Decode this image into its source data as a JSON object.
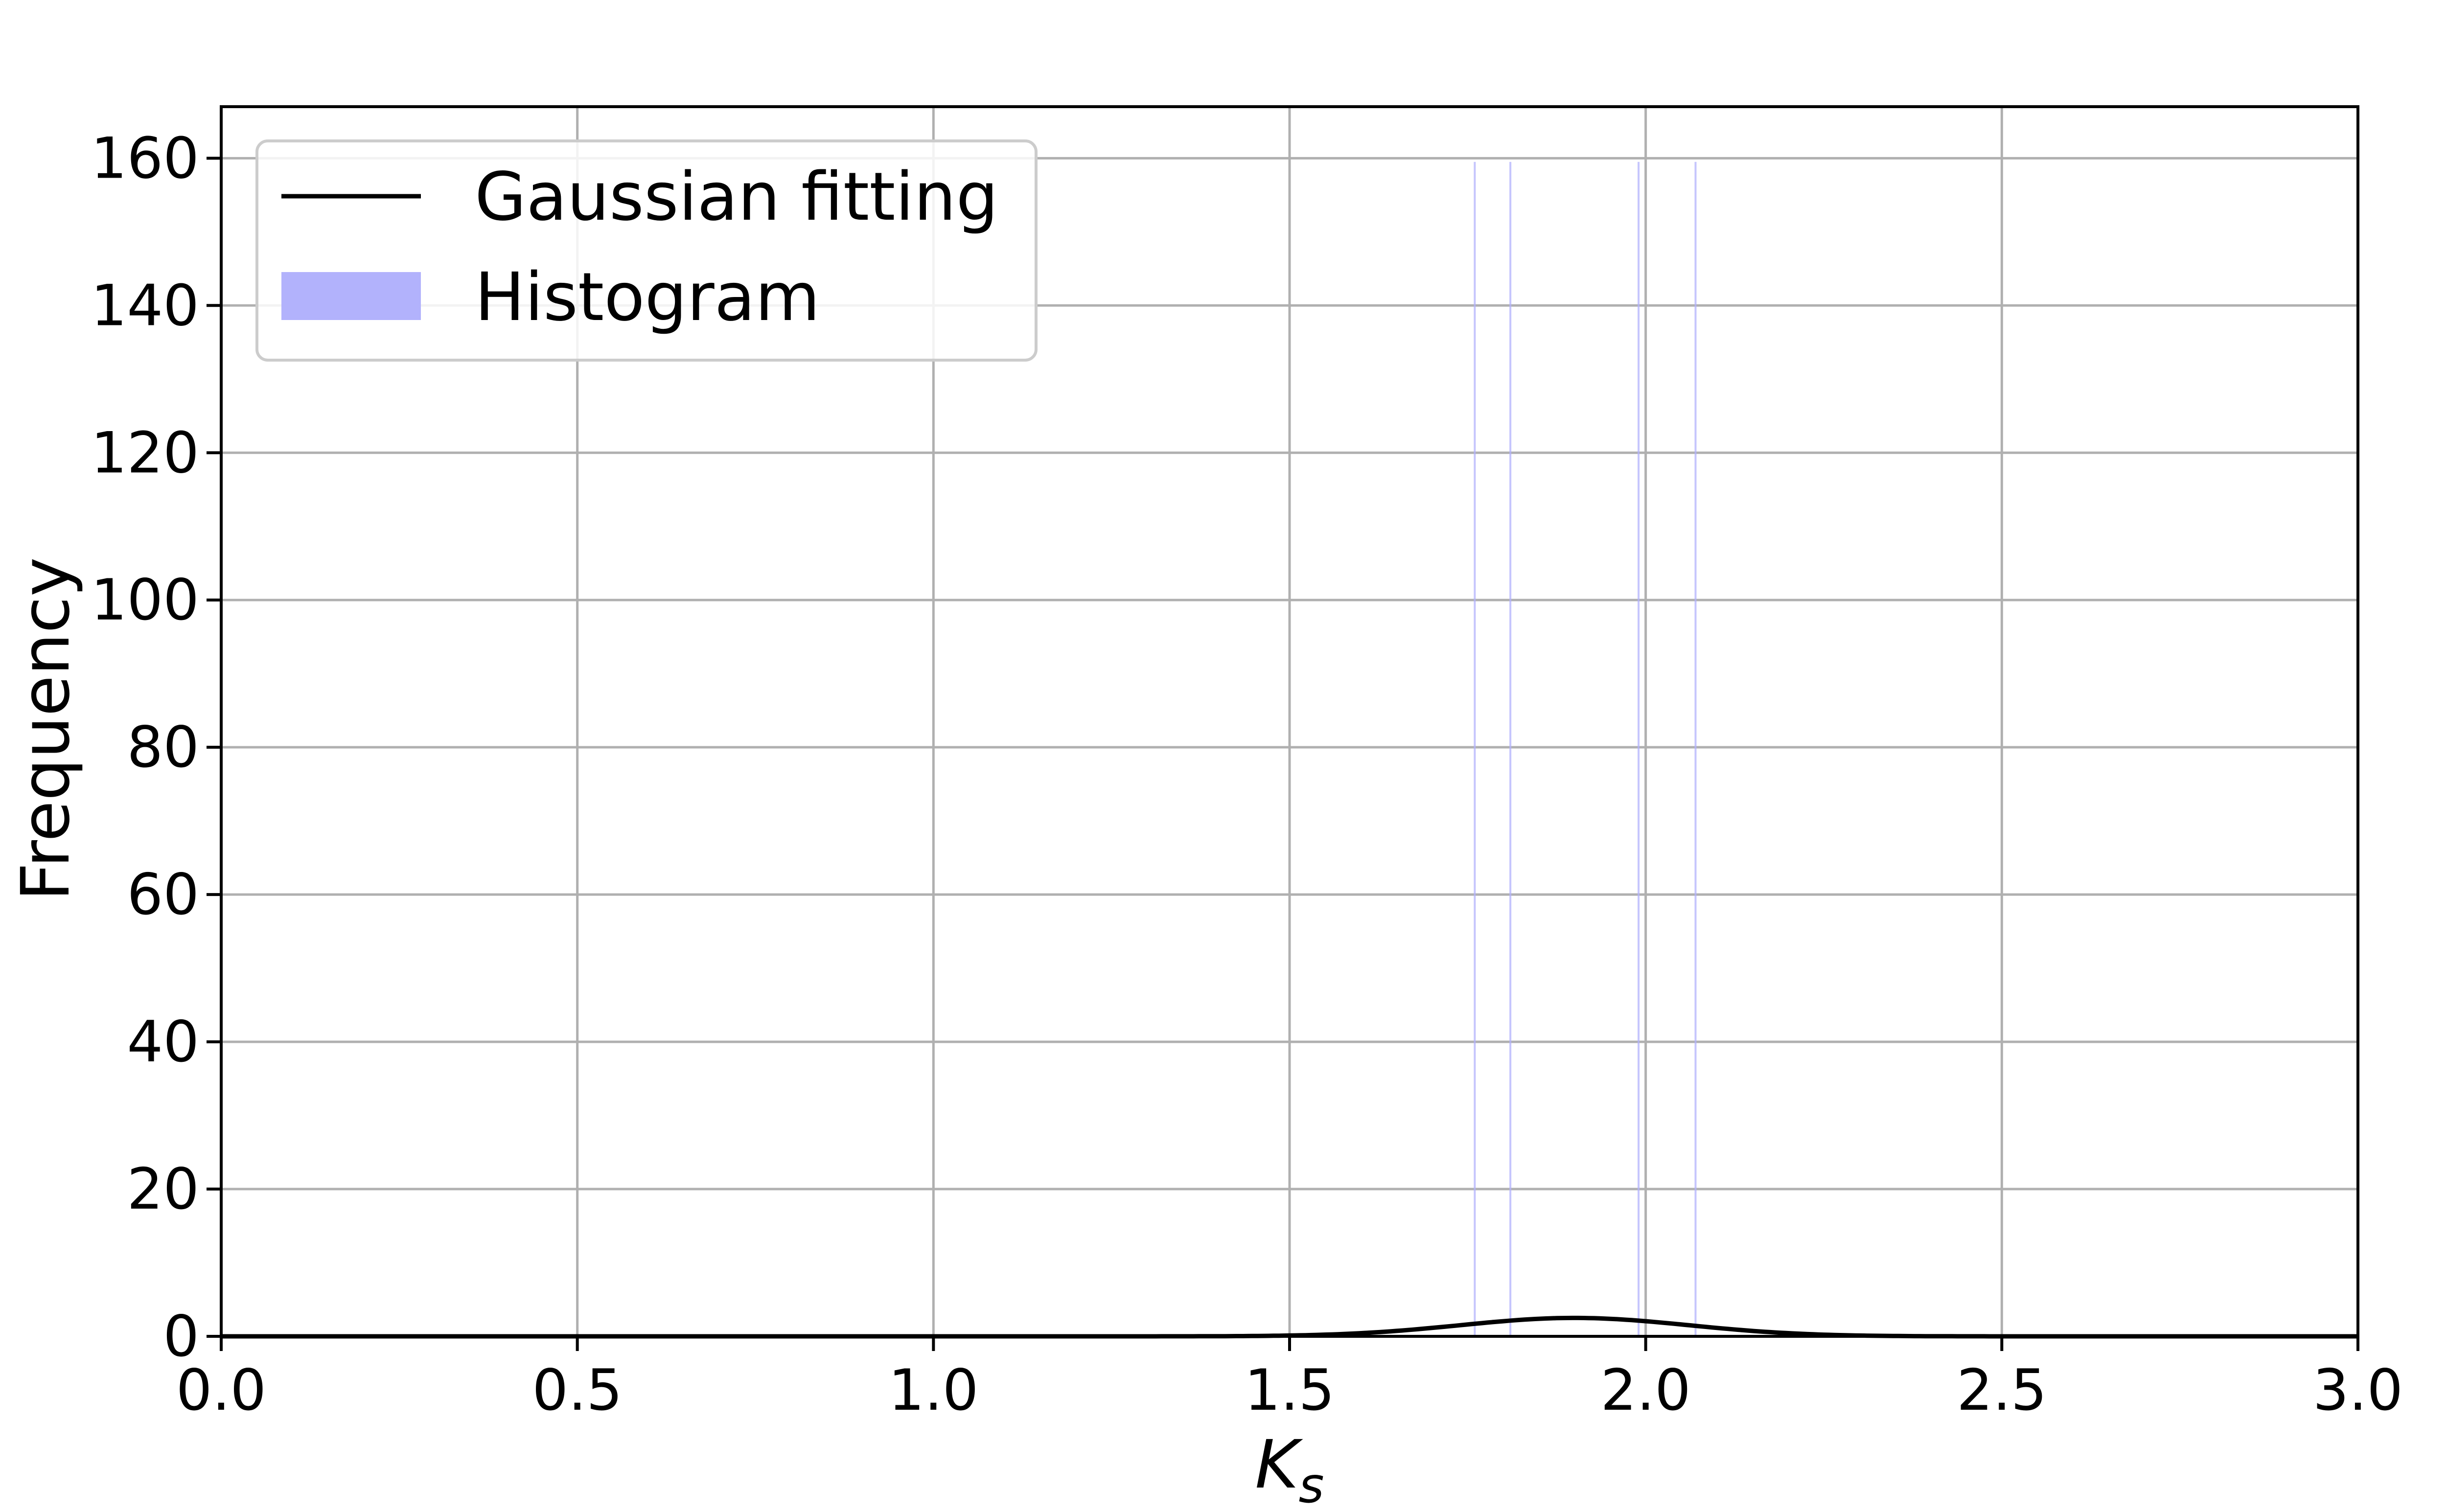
{
  "chart_data": {
    "type": "bar",
    "xlabel": "K",
    "xlabel_subscript": "s",
    "ylabel": "Frequency",
    "xlim": [
      0.0,
      3.0
    ],
    "ylim": [
      0,
      167
    ],
    "x_ticks": [
      0.0,
      0.5,
      1.0,
      1.5,
      2.0,
      2.5,
      3.0
    ],
    "x_tick_labels": [
      "0.0",
      "0.5",
      "1.0",
      "1.5",
      "2.0",
      "2.5",
      "3.0"
    ],
    "y_ticks": [
      0,
      20,
      40,
      60,
      80,
      100,
      120,
      140,
      160
    ],
    "y_tick_labels": [
      "0",
      "20",
      "40",
      "60",
      "80",
      "100",
      "120",
      "140",
      "160"
    ],
    "grid": true,
    "legend_position": "upper-left",
    "legend": [
      {
        "label": "Gaussian fitting",
        "kind": "line",
        "color": "#000000"
      },
      {
        "label": "Histogram",
        "kind": "patch",
        "color": "#b2b2fc"
      }
    ],
    "histogram": {
      "name": "Histogram",
      "color": "#b2b2fc",
      "bars": [
        {
          "x": 1.76,
          "height": 159.5
        },
        {
          "x": 1.81,
          "height": 159.5
        },
        {
          "x": 1.99,
          "height": 159.5
        },
        {
          "x": 2.07,
          "height": 159.5
        }
      ]
    },
    "gaussian": {
      "name": "Gaussian fitting",
      "color": "#000000",
      "mean": 1.9,
      "sd": 0.16,
      "peak": 2.5
    }
  }
}
